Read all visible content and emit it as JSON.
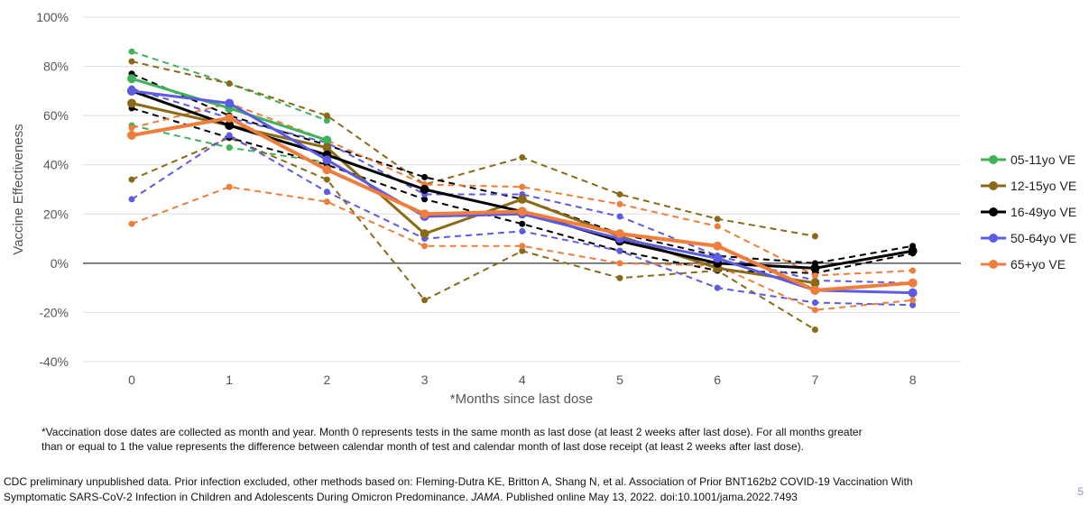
{
  "chart_data": {
    "type": "line",
    "xlabel": "*Months since last dose",
    "ylabel": "Vaccine Effectiveness",
    "x": [
      0,
      1,
      2,
      3,
      4,
      5,
      6,
      7,
      8
    ],
    "ylim": [
      -40,
      100
    ],
    "yticks": [
      -40,
      -20,
      0,
      20,
      40,
      60,
      80,
      100
    ],
    "ytick_labels": [
      "-40%",
      "-20%",
      "0%",
      "20%",
      "40%",
      "60%",
      "80%",
      "100%"
    ],
    "grid": true,
    "legend_position": "right",
    "series": [
      {
        "name": "05-11yo VE",
        "color": "#3fb35a",
        "values": [
          75,
          63,
          50,
          null,
          null,
          null,
          null,
          null,
          null
        ],
        "ci_lower": [
          56,
          47,
          41,
          null,
          null,
          null,
          null,
          null,
          null
        ],
        "ci_upper": [
          86,
          73,
          58,
          null,
          null,
          null,
          null,
          null,
          null
        ]
      },
      {
        "name": "12-15yo VE",
        "color": "#8a6a16",
        "values": [
          65,
          56,
          47,
          12,
          26,
          11,
          -2,
          -8,
          null
        ],
        "ci_lower": [
          34,
          51,
          34,
          -15,
          5,
          -6,
          -3,
          -27,
          null
        ],
        "ci_upper": [
          82,
          73,
          60,
          32,
          43,
          28,
          18,
          11,
          null
        ]
      },
      {
        "name": "16-49yo VE",
        "color": "#000000",
        "values": [
          70,
          56,
          44,
          30,
          21,
          9,
          0,
          -2,
          5
        ],
        "ci_lower": [
          63,
          51,
          40,
          26,
          16,
          5,
          -3,
          -4,
          4
        ],
        "ci_upper": [
          77,
          60,
          48,
          35,
          26,
          12,
          3,
          0,
          7
        ]
      },
      {
        "name": "50-64yo VE",
        "color": "#5b5be6",
        "values": [
          70,
          65,
          42,
          19,
          20,
          10,
          2,
          -11,
          -12
        ],
        "ci_lower": [
          26,
          52,
          29,
          10,
          13,
          5,
          -10,
          -16,
          -17
        ],
        "ci_upper": [
          71,
          59,
          49,
          28,
          28,
          19,
          3,
          -7,
          -8
        ]
      },
      {
        "name": "65+yo VE",
        "color": "#ef7d3c",
        "values": [
          52,
          59,
          38,
          20,
          21,
          12,
          7,
          -11,
          -8
        ],
        "ci_lower": [
          16,
          31,
          25,
          7,
          7,
          0,
          -1,
          -19,
          -15
        ],
        "ci_upper": [
          55,
          65,
          50,
          32,
          31,
          24,
          15,
          -5,
          -3
        ]
      }
    ]
  },
  "footnote": {
    "line1": "*Vaccination dose dates are collected as month and year. Month 0 represents tests in the same month as last dose (at least 2 weeks after last dose).  For all months greater",
    "line2": "than or equal to 1 the value represents the difference between calendar month of test and calendar month of last dose receipt (at least 2 weeks after last dose)."
  },
  "source": {
    "part1": "CDC preliminary unpublished data. Prior infection excluded, other methods based on: Fleming-Dutra KE, Britton A, Shang N, et al. Association of Prior BNT162b2 COVID-19 Vaccination With",
    "part2": "Symptomatic SARS-CoV-2 Infection in Children and Adolescents During Omicron Predominance. ",
    "journal": "JAMA",
    "part3": ". Published online May 13, 2022. doi:10.1001/jama.2022.7493"
  },
  "page_number": "5"
}
